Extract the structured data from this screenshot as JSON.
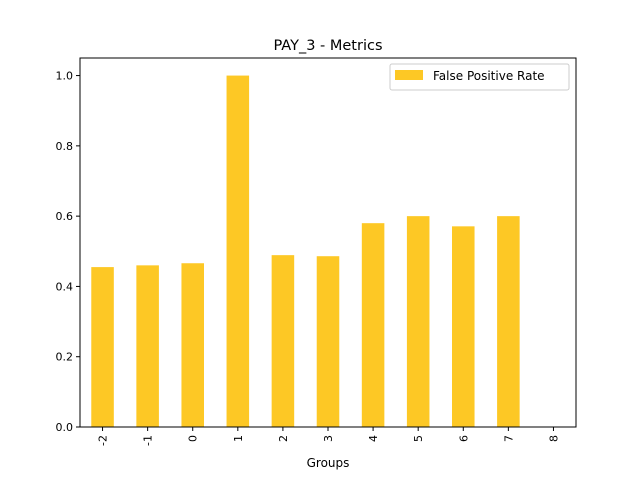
{
  "chart_data": {
    "type": "bar",
    "title": "PAY_3 - Metrics",
    "xlabel": "Groups",
    "ylabel": "",
    "categories": [
      "-2",
      "-1",
      "0",
      "1",
      "2",
      "3",
      "4",
      "5",
      "6",
      "7",
      "8"
    ],
    "series": [
      {
        "name": "False Positive Rate",
        "color": "#fdc825",
        "values": [
          0.455,
          0.46,
          0.466,
          1.0,
          0.489,
          0.486,
          0.58,
          0.6,
          0.571,
          0.6,
          0.0
        ]
      }
    ],
    "ylim": [
      0,
      1.05
    ],
    "yticks": [
      "0.0",
      "0.2",
      "0.4",
      "0.6",
      "0.8",
      "1.0"
    ],
    "grid": false,
    "legend": "top-right"
  }
}
